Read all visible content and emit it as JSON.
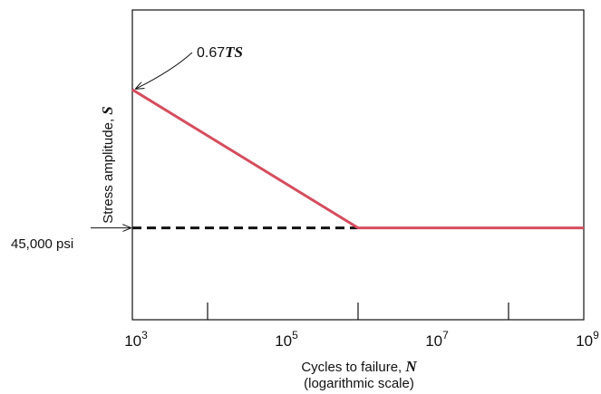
{
  "chart_data": {
    "type": "line",
    "title": "",
    "xlabel": "Cycles to failure, ",
    "xlabel_var": "N",
    "xlabel_note": "(logarithmic scale)",
    "ylabel": "Stress amplitude, ",
    "ylabel_var": "S",
    "x_scale": "log",
    "xlim": [
      1000,
      1000000000
    ],
    "x_ticks_major": [
      {
        "base": "10",
        "exp": "3",
        "value": 1000
      },
      {
        "base": "10",
        "exp": "5",
        "value": 100000
      },
      {
        "base": "10",
        "exp": "7",
        "value": 10000000
      },
      {
        "base": "10",
        "exp": "9",
        "value": 1000000000
      }
    ],
    "x_ticks_minor": [
      10000,
      1000000,
      100000000
    ],
    "y_ticks": [],
    "grid": false,
    "series": [
      {
        "style": "solid",
        "color": "#d64d5e",
        "x": [
          1000,
          1000000,
          1000000000
        ],
        "y_level": [
          0.7429,
          0.2964,
          0.2964
        ]
      },
      {
        "style": "dashed",
        "color": "#111111",
        "x": [
          1000,
          1000000
        ],
        "y_level": [
          0.2964,
          0.2964
        ]
      }
    ],
    "annotations": [
      {
        "text": "0.67",
        "emph": "TS",
        "points_to_x": 1000,
        "points_to_y_level": 0.7429
      },
      {
        "text": "45,000 psi",
        "points_to_x": 1000,
        "points_to_y_level": 0.2964
      }
    ]
  }
}
